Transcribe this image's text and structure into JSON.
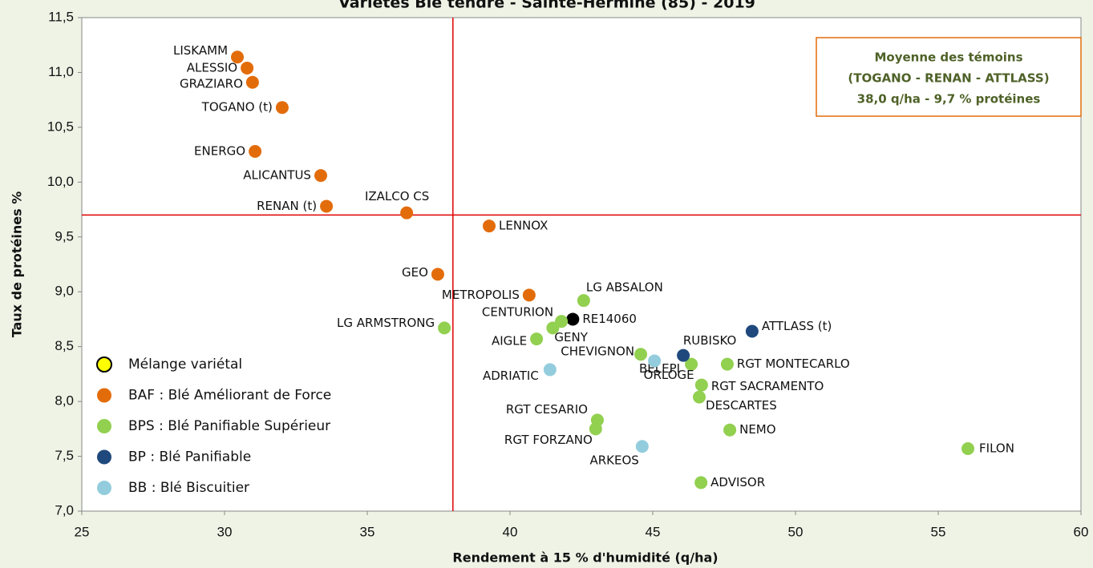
{
  "chart_data": {
    "type": "scatter",
    "title": "Variétés Blé tendre - Sainte-Hermine (85) - 2019",
    "x_label": "Rendement à 15 % d'humidité (q/ha)",
    "y_label": "Taux de protéines %",
    "xlim": [
      25,
      60
    ],
    "ylim": [
      7.0,
      11.5
    ],
    "xticks": [
      25,
      30,
      35,
      40,
      45,
      50,
      55,
      60
    ],
    "yticks": [
      {
        "value": 7.0,
        "label": "7,0"
      },
      {
        "value": 7.5,
        "label": "7,5"
      },
      {
        "value": 8.0,
        "label": "8,0"
      },
      {
        "value": 8.5,
        "label": "8,5"
      },
      {
        "value": 9.0,
        "label": "9,0"
      },
      {
        "value": 9.5,
        "label": "9,5"
      },
      {
        "value": 10.0,
        "label": "10,0"
      },
      {
        "value": 10.5,
        "label": "10,5"
      },
      {
        "value": 11.0,
        "label": "11,0"
      },
      {
        "value": 11.5,
        "label": "11,5"
      }
    ],
    "reference_lines": {
      "x": 38.0,
      "y": 9.7,
      "color": "#e00000"
    },
    "annotation": [
      "Moyenne des témoins",
      "(TOGANO - RENAN - ATTLASS)",
      "38,0 q/ha - 9,7 % protéines"
    ],
    "legend": "lower left",
    "series": [
      {
        "name": "Mélange variétal",
        "color": "#000000",
        "legend_color": "#ffff00",
        "labels": [
          "RE14060"
        ],
        "x": [
          42.2
        ],
        "values": [
          8.75
        ]
      },
      {
        "name": "BAF : Blé Améliorant de Force",
        "color": "#e36c0a",
        "labels": [
          "LISKAMM",
          "ALESSIO",
          "GRAZIARO",
          "TOGANO (t)",
          "ENERGO",
          "ALICANTUS",
          "RENAN (t)",
          "IZALCO CS",
          "LENNOX",
          "GEO",
          "METROPOLIS"
        ],
        "x": [
          30.45,
          30.79,
          30.98,
          32.02,
          31.07,
          33.37,
          33.57,
          36.38,
          39.27,
          37.47,
          40.67
        ],
        "values": [
          11.14,
          11.04,
          10.91,
          10.68,
          10.28,
          10.06,
          9.78,
          9.72,
          9.6,
          9.16,
          8.97
        ]
      },
      {
        "name": "BPS : Blé Panifiable Supérieur",
        "color": "#92d050",
        "labels": [
          "LG ABSALON",
          "CENTURION",
          "GENY",
          "LG ARMSTRONG",
          "AIGLE",
          "CHEVIGNON",
          "BELEPI",
          "RGT MONTECARLO",
          "RGT SACRAMENTO",
          "DESCARTES",
          "RGT CESARIO",
          "RGT FORZANO",
          "NEMO",
          "FILON",
          "ADVISOR"
        ],
        "x": [
          42.58,
          41.8,
          41.5,
          37.7,
          40.93,
          44.58,
          46.35,
          47.61,
          46.71,
          46.63,
          43.06,
          43.0,
          47.7,
          56.04,
          46.69
        ],
        "values": [
          8.92,
          8.73,
          8.67,
          8.67,
          8.57,
          8.43,
          8.34,
          8.34,
          8.15,
          8.04,
          7.83,
          7.75,
          7.74,
          7.57,
          7.26
        ]
      },
      {
        "name": "BP : Blé Panifiable",
        "color": "#1f497d",
        "labels": [
          "ATTLASS (t)",
          "RUBISKO"
        ],
        "x": [
          48.48,
          46.07
        ],
        "values": [
          8.64,
          8.42
        ]
      },
      {
        "name": "BB : Blé Biscuitier",
        "color": "#93cddd",
        "labels": [
          "ADRIATIC",
          "ORLOGE",
          "ARKEOS"
        ],
        "x": [
          41.4,
          45.06,
          44.63
        ],
        "values": [
          8.29,
          8.37,
          7.59
        ]
      }
    ]
  }
}
